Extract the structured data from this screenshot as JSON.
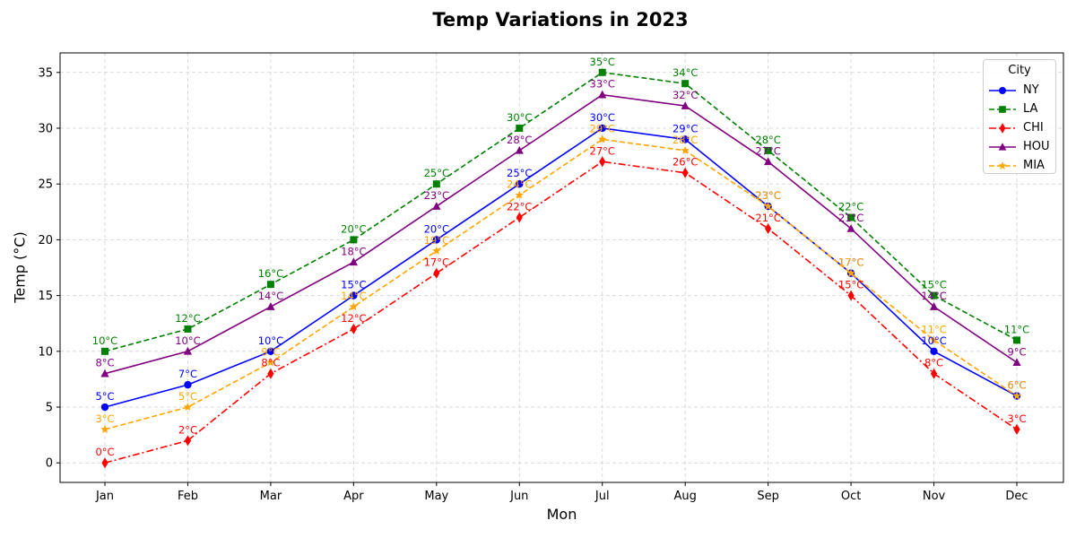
{
  "chart_data": {
    "type": "line",
    "title": "Temp Variations in 2023",
    "xlabel": "Mon",
    "ylabel": "Temp (°C)",
    "categories": [
      "Jan",
      "Feb",
      "Mar",
      "Apr",
      "May",
      "Jun",
      "Jul",
      "Aug",
      "Sep",
      "Oct",
      "Nov",
      "Dec"
    ],
    "ylim": [
      -1.75,
      36.75
    ],
    "yticks": [
      0,
      5,
      10,
      15,
      20,
      25,
      30,
      35
    ],
    "grid": true,
    "legend": {
      "title": "City",
      "placement": "top-right"
    },
    "series": [
      {
        "name": "NY",
        "values": [
          5,
          7,
          10,
          15,
          20,
          25,
          30,
          29,
          23,
          17,
          10,
          6
        ],
        "color": "#0000ff",
        "linestyle": "solid",
        "marker": "circle"
      },
      {
        "name": "LA",
        "values": [
          10,
          12,
          16,
          20,
          25,
          30,
          35,
          34,
          28,
          22,
          15,
          11
        ],
        "color": "#008000",
        "linestyle": "dashed",
        "marker": "square"
      },
      {
        "name": "CHI",
        "values": [
          0,
          2,
          8,
          12,
          17,
          22,
          27,
          26,
          21,
          15,
          8,
          3
        ],
        "color": "#ff0000",
        "linestyle": "dashdot",
        "marker": "diamond"
      },
      {
        "name": "HOU",
        "values": [
          8,
          10,
          14,
          18,
          23,
          28,
          33,
          32,
          27,
          21,
          14,
          9
        ],
        "color": "#800080",
        "linestyle": "solid",
        "marker": "triangle"
      },
      {
        "name": "MIA",
        "values": [
          3,
          5,
          9,
          14,
          19,
          24,
          29,
          28,
          23,
          17,
          11,
          6
        ],
        "color": "#ffa500",
        "linestyle": "dashed",
        "marker": "star"
      }
    ],
    "data_label_suffix": "°C"
  }
}
